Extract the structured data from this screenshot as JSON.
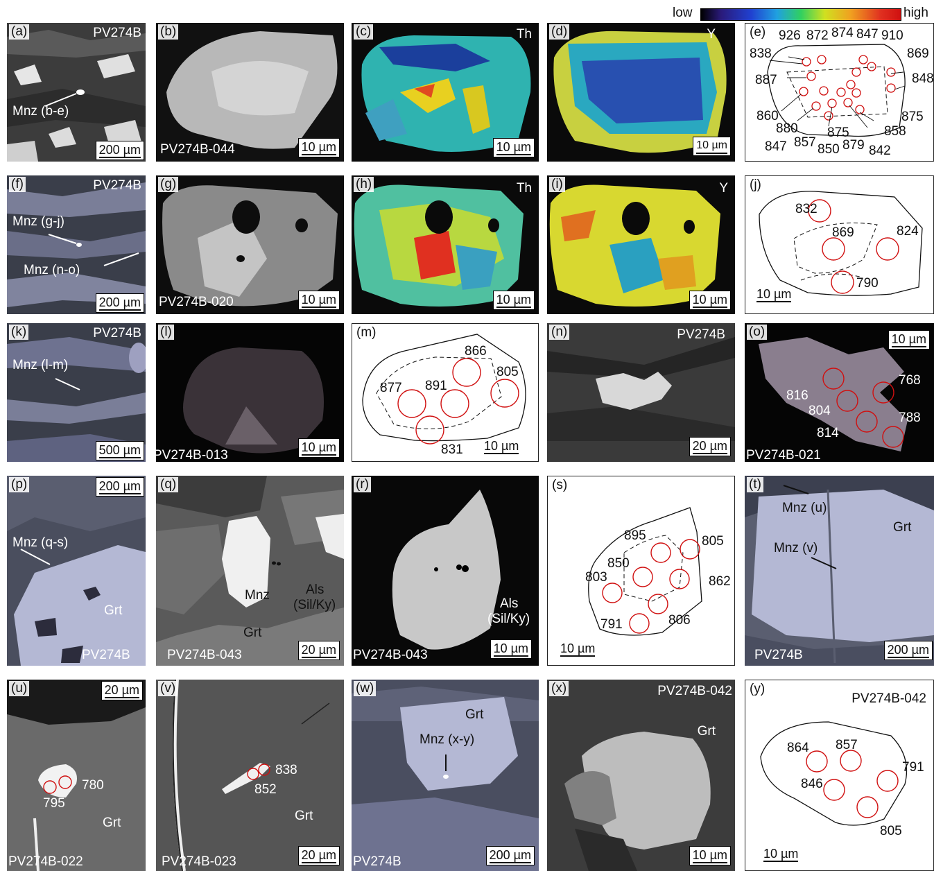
{
  "colorbar": {
    "low": "low",
    "high": "high"
  },
  "rows": [
    [
      {
        "id": "a",
        "label": "(a)",
        "sample": "PV274B",
        "mnz": "Mnz (b-e)",
        "scale": "200 µm"
      },
      {
        "id": "b",
        "label": "(b)",
        "pid": "PV274B-044",
        "scale": "10 µm"
      },
      {
        "id": "c",
        "label": "(c)",
        "element": "Th",
        "scale": "10 µm"
      },
      {
        "id": "d",
        "label": "(d)",
        "element": "Y",
        "scale": "10 µm"
      },
      {
        "id": "e",
        "label": "(e)",
        "ages": [
          "926",
          "872",
          "874",
          "847",
          "910",
          "838",
          "869",
          "887",
          "848",
          "860",
          "880",
          "875",
          "858",
          "847",
          "857",
          "850",
          "879",
          "842",
          "875"
        ]
      }
    ],
    [
      {
        "id": "f",
        "label": "(f)",
        "sample": "PV274B",
        "mnz1": "Mnz (g-j)",
        "mnz2": "Mnz (n-o)",
        "scale": "200 µm"
      },
      {
        "id": "g",
        "label": "(g)",
        "pid": "PV274B-020",
        "scale": "10 µm"
      },
      {
        "id": "h",
        "label": "(h)",
        "element": "Th",
        "scale": "10 µm"
      },
      {
        "id": "i",
        "label": "(i)",
        "element": "Y",
        "scale": "10 µm"
      },
      {
        "id": "j",
        "label": "(j)",
        "ages": [
          "832",
          "869",
          "824",
          "790"
        ],
        "scale": "10 µm"
      }
    ],
    [
      {
        "id": "k",
        "label": "(k)",
        "sample": "PV274B",
        "mnz": "Mnz (l-m)",
        "scale": "500 µm"
      },
      {
        "id": "l",
        "label": "(l)",
        "pid": "PV274B-013",
        "scale": "10 µm"
      },
      {
        "id": "m",
        "label": "(m)",
        "ages": [
          "866",
          "805",
          "877",
          "891",
          "831"
        ],
        "scale": "10 µm"
      },
      {
        "id": "n",
        "label": "(n)",
        "sample": "PV274B",
        "scale": "20 µm"
      },
      {
        "id": "o",
        "label": "(o)",
        "pid": "PV274B-021",
        "ages": [
          "768",
          "816",
          "804",
          "788",
          "814"
        ],
        "scale": "10 µm"
      }
    ],
    [
      {
        "id": "p",
        "label": "(p)",
        "scale": "200 µm",
        "mnz": "Mnz (q-s)",
        "grt": "Grt",
        "sample": "PV274B"
      },
      {
        "id": "q",
        "label": "(q)",
        "mnz": "Mnz",
        "als1": "Als",
        "als2": "(Sil/Ky)",
        "grt": "Grt",
        "pid": "PV274B-043",
        "scale": "20 µm"
      },
      {
        "id": "r",
        "label": "(r)",
        "als1": "Als",
        "als2": "(Sil/Ky)",
        "pid": "PV274B-043",
        "scale": "10 µm"
      },
      {
        "id": "s",
        "label": "(s)",
        "ages": [
          "895",
          "805",
          "850",
          "803",
          "862",
          "791",
          "806"
        ],
        "scale": "10 µm"
      },
      {
        "id": "t",
        "label": "(t)",
        "mnz1": "Mnz (u)",
        "mnz2": "Mnz (v)",
        "grt": "Grt",
        "sample": "PV274B",
        "scale": "200 µm"
      }
    ],
    [
      {
        "id": "u",
        "label": "(u)",
        "scale": "20 µm",
        "ages": [
          "780",
          "795"
        ],
        "grt": "Grt",
        "pid": "PV274B-022"
      },
      {
        "id": "v",
        "label": "(v)",
        "ages": [
          "838",
          "852"
        ],
        "grt": "Grt",
        "pid": "PV274B-023",
        "scale": "20 µm"
      },
      {
        "id": "w",
        "label": "(w)",
        "grt": "Grt",
        "mnz": "Mnz (x-y)",
        "sample": "PV274B",
        "scale": "200 µm"
      },
      {
        "id": "x",
        "label": "(x)",
        "pid": "PV274B-042",
        "grt": "Grt",
        "scale": "10 µm"
      },
      {
        "id": "y",
        "label": "(y)",
        "pid": "PV274B-042",
        "ages": [
          "864",
          "857",
          "791",
          "846",
          "805"
        ],
        "scale": "10 µm"
      }
    ]
  ]
}
